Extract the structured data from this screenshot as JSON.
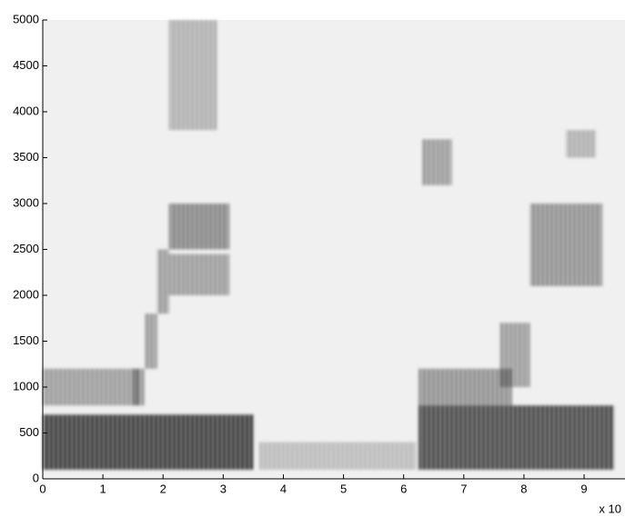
{
  "chart_data": {
    "type": "spectrogram",
    "x_multiplier_label": "x 10",
    "xlim": [
      0,
      9.68
    ],
    "xticks": [
      0,
      1,
      2,
      3,
      4,
      5,
      6,
      7,
      8,
      9
    ],
    "ylim": [
      0,
      5000
    ],
    "yticks": [
      0,
      500,
      1000,
      1500,
      2000,
      2500,
      3000,
      3500,
      4000,
      4500,
      5000
    ],
    "regions": [
      {
        "x": [
          0,
          3.5
        ],
        "y": [
          100,
          700
        ],
        "intensity": 0.85
      },
      {
        "x": [
          0,
          1.6
        ],
        "y": [
          800,
          1200
        ],
        "intensity": 0.4
      },
      {
        "x": [
          1.5,
          1.7
        ],
        "y": [
          800,
          1200
        ],
        "intensity": 0.4
      },
      {
        "x": [
          1.7,
          1.9
        ],
        "y": [
          1200,
          1800
        ],
        "intensity": 0.4
      },
      {
        "x": [
          1.9,
          2.1
        ],
        "y": [
          1800,
          2500
        ],
        "intensity": 0.4
      },
      {
        "x": [
          2.1,
          3.1
        ],
        "y": [
          2500,
          3000
        ],
        "intensity": 0.5
      },
      {
        "x": [
          2.1,
          3.1
        ],
        "y": [
          2000,
          2450
        ],
        "intensity": 0.4
      },
      {
        "x": [
          2.1,
          2.9
        ],
        "y": [
          3800,
          5000
        ],
        "intensity": 0.3
      },
      {
        "x": [
          3.6,
          6.2
        ],
        "y": [
          100,
          400
        ],
        "intensity": 0.25
      },
      {
        "x": [
          6.25,
          9.5
        ],
        "y": [
          100,
          800
        ],
        "intensity": 0.8
      },
      {
        "x": [
          6.25,
          7.8
        ],
        "y": [
          800,
          1200
        ],
        "intensity": 0.45
      },
      {
        "x": [
          7.6,
          8.1
        ],
        "y": [
          1000,
          1700
        ],
        "intensity": 0.4
      },
      {
        "x": [
          6.3,
          6.8
        ],
        "y": [
          3200,
          3700
        ],
        "intensity": 0.4
      },
      {
        "x": [
          8.1,
          9.3
        ],
        "y": [
          2100,
          3000
        ],
        "intensity": 0.45
      },
      {
        "x": [
          8.7,
          9.2
        ],
        "y": [
          3500,
          3800
        ],
        "intensity": 0.3
      }
    ],
    "color": "#000000",
    "background": "#f0f0f0"
  }
}
